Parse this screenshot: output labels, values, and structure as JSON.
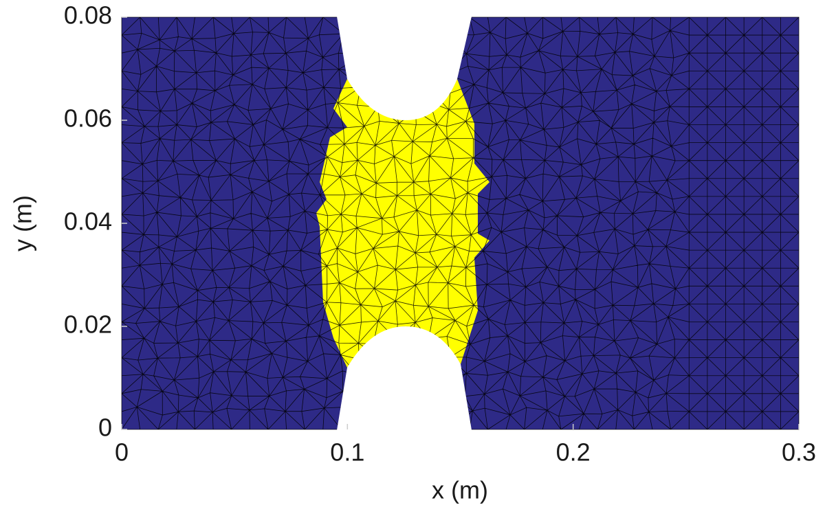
{
  "chart_data": {
    "type": "mesh",
    "xlabel": "x (m)",
    "ylabel": "y (m)",
    "xlim": [
      0,
      0.3
    ],
    "ylim": [
      0,
      0.08
    ],
    "xticks": [
      0,
      0.1,
      0.2,
      0.3
    ],
    "yticks": [
      0,
      0.02,
      0.04,
      0.06,
      0.08
    ],
    "color": "#2e2a87",
    "highlight_color": "#ffff00",
    "edge_color": "#000000"
  }
}
